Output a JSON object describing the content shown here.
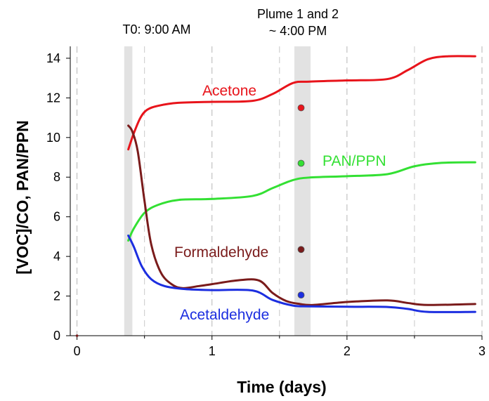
{
  "chart_data": {
    "type": "line",
    "title": "",
    "xlabel": "Time (days)",
    "ylabel": "[VOC]/CO, PAN/PPN",
    "xlim": [
      -0.05,
      3
    ],
    "ylim": [
      0,
      14.6
    ],
    "xticks": [
      0,
      1,
      2,
      3
    ],
    "yticks": [
      0,
      2,
      4,
      6,
      8,
      10,
      12,
      14
    ],
    "grid": "vertical dashed at x ticks",
    "legend": "inline labels",
    "shaded_bands": [
      {
        "x0": 0.35,
        "x1": 0.41,
        "label": "T0: 9:00 AM"
      },
      {
        "x0": 1.61,
        "x1": 1.73,
        "label_line1": "Plume 1 and 2",
        "label_line2": "~ 4:00 PM"
      }
    ],
    "series": [
      {
        "name": "Acetone",
        "color": "#e8141b",
        "x": [
          0.38,
          0.42,
          0.47,
          0.52,
          0.6,
          0.75,
          1.0,
          1.3,
          1.45,
          1.6,
          1.72,
          2.0,
          2.3,
          2.45,
          2.6,
          2.75,
          2.95
        ],
        "y": [
          9.4,
          10.2,
          11.0,
          11.4,
          11.6,
          11.75,
          11.8,
          11.85,
          12.2,
          12.75,
          12.82,
          12.88,
          12.95,
          13.4,
          13.95,
          14.1,
          14.1
        ],
        "marker": {
          "x": 1.66,
          "y": 11.5
        }
      },
      {
        "name": "PAN/PPN",
        "color": "#33e033",
        "x": [
          0.38,
          0.42,
          0.5,
          0.6,
          0.75,
          1.0,
          1.3,
          1.45,
          1.6,
          1.72,
          2.0,
          2.3,
          2.5,
          2.7,
          2.95
        ],
        "y": [
          4.8,
          5.4,
          6.2,
          6.6,
          6.85,
          6.9,
          7.05,
          7.45,
          7.85,
          7.98,
          8.05,
          8.15,
          8.55,
          8.72,
          8.75
        ],
        "marker": {
          "x": 1.66,
          "y": 8.7
        }
      },
      {
        "name": "Formaldehyde",
        "color": "#7a1b1b",
        "x": [
          0.38,
          0.41,
          0.45,
          0.5,
          0.55,
          0.62,
          0.7,
          0.78,
          0.9,
          1.0,
          1.2,
          1.35,
          1.45,
          1.55,
          1.65,
          1.75,
          2.0,
          2.3,
          2.45,
          2.6,
          2.95
        ],
        "y": [
          10.6,
          10.3,
          9.3,
          6.8,
          4.6,
          3.2,
          2.6,
          2.4,
          2.5,
          2.6,
          2.8,
          2.78,
          2.15,
          1.75,
          1.6,
          1.55,
          1.7,
          1.78,
          1.65,
          1.55,
          1.6
        ],
        "marker": {
          "x": 1.66,
          "y": 4.35
        }
      },
      {
        "name": "Acetaldehyde",
        "color": "#1c2ee0",
        "x": [
          0.38,
          0.42,
          0.48,
          0.55,
          0.65,
          0.8,
          1.0,
          1.3,
          1.45,
          1.6,
          1.72,
          2.0,
          2.3,
          2.45,
          2.6,
          2.95
        ],
        "y": [
          5.05,
          4.5,
          3.5,
          2.85,
          2.5,
          2.35,
          2.3,
          2.28,
          1.8,
          1.52,
          1.48,
          1.46,
          1.45,
          1.35,
          1.2,
          1.2
        ],
        "marker": {
          "x": 1.66,
          "y": 2.05
        }
      }
    ],
    "origin_marker": {
      "x": 0,
      "y": 0,
      "color": "#7a1b1b"
    }
  }
}
